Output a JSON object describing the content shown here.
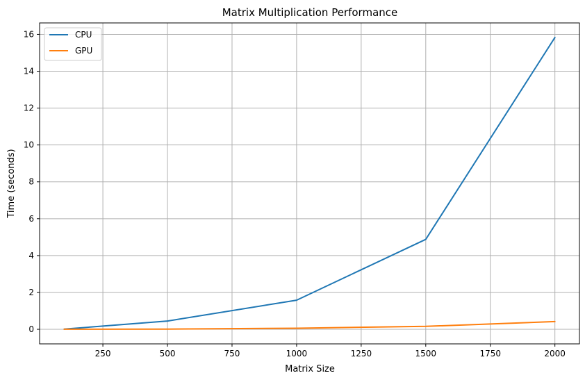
{
  "chart_data": {
    "type": "line",
    "title": "Matrix Multiplication Performance",
    "xlabel": "Matrix Size",
    "ylabel": "Time (seconds)",
    "x": [
      100,
      500,
      1000,
      1500,
      2000
    ],
    "series": [
      {
        "name": "CPU",
        "color": "#1f77b4",
        "values": [
          0.01,
          0.45,
          1.58,
          4.88,
          15.83
        ]
      },
      {
        "name": "GPU",
        "color": "#ff7f0e",
        "values": [
          0.005,
          0.01,
          0.06,
          0.16,
          0.42
        ]
      }
    ],
    "xlim": [
      5,
      2095
    ],
    "ylim": [
      -0.79,
      16.62
    ],
    "xticks": [
      250,
      500,
      750,
      1000,
      1250,
      1500,
      1750,
      2000
    ],
    "xtick_labels": [
      "250",
      "500",
      "750",
      "1000",
      "1250",
      "1500",
      "1750",
      "2000"
    ],
    "yticks": [
      0,
      2,
      4,
      6,
      8,
      10,
      12,
      14,
      16
    ],
    "ytick_labels": [
      "0",
      "2",
      "4",
      "6",
      "8",
      "10",
      "12",
      "14",
      "16"
    ],
    "grid": true,
    "legend_position": "top-left"
  }
}
